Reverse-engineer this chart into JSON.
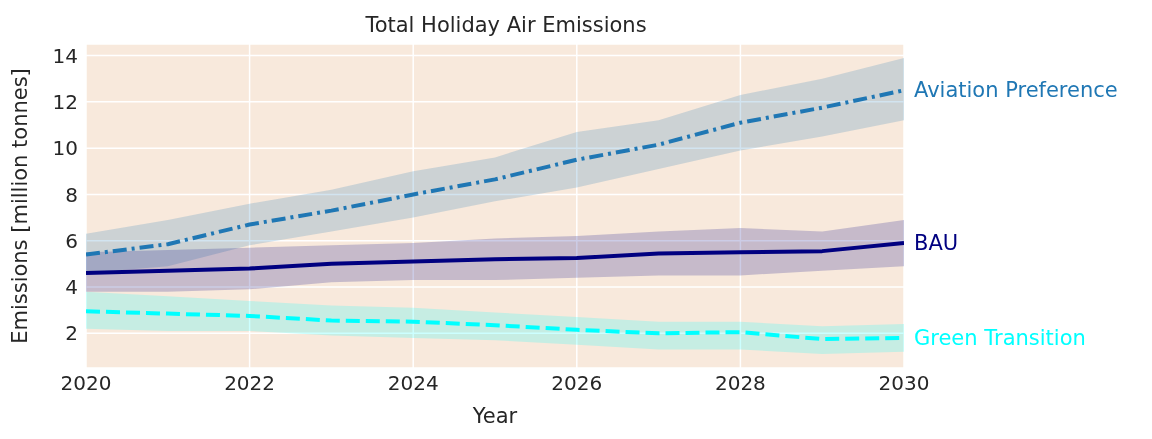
{
  "chart_data": {
    "type": "line",
    "title": "Total Holiday Air Emissions",
    "xlabel": "Year",
    "ylabel": "Emissions [million tonnes]",
    "x": [
      2020,
      2021,
      2022,
      2023,
      2024,
      2025,
      2026,
      2027,
      2028,
      2029,
      2030
    ],
    "series": [
      {
        "name": "Aviation Preference",
        "color": "#1f77b4",
        "line_style": "dashdot",
        "values": [
          5.4,
          5.85,
          6.7,
          7.3,
          8.0,
          8.65,
          9.5,
          10.15,
          11.1,
          11.75,
          12.5
        ],
        "lower": [
          4.6,
          4.9,
          5.8,
          6.4,
          7.0,
          7.7,
          8.3,
          9.1,
          9.9,
          10.5,
          11.2
        ],
        "upper": [
          6.3,
          6.9,
          7.6,
          8.2,
          9.0,
          9.6,
          10.7,
          11.2,
          12.3,
          13.0,
          13.9
        ]
      },
      {
        "name": "BAU",
        "color": "#000080",
        "line_style": "solid",
        "values": [
          4.6,
          4.7,
          4.8,
          5.0,
          5.1,
          5.2,
          5.25,
          5.45,
          5.5,
          5.55,
          5.9
        ],
        "lower": [
          3.8,
          3.8,
          3.9,
          4.2,
          4.3,
          4.3,
          4.4,
          4.5,
          4.5,
          4.7,
          4.9
        ],
        "upper": [
          5.5,
          5.6,
          5.7,
          5.8,
          5.9,
          6.1,
          6.2,
          6.4,
          6.55,
          6.4,
          6.9
        ]
      },
      {
        "name": "Green Transition",
        "color": "#00ffff",
        "line_style": "dashed",
        "values": [
          2.95,
          2.85,
          2.75,
          2.55,
          2.5,
          2.35,
          2.15,
          2.0,
          2.05,
          1.75,
          1.8
        ],
        "lower": [
          2.2,
          2.1,
          2.1,
          1.9,
          1.8,
          1.7,
          1.5,
          1.3,
          1.3,
          1.1,
          1.2
        ],
        "upper": [
          3.8,
          3.6,
          3.4,
          3.2,
          3.1,
          2.9,
          2.7,
          2.5,
          2.5,
          2.3,
          2.4
        ]
      }
    ],
    "xlim": [
      2020,
      2030
    ],
    "xticks": [
      2020,
      2022,
      2024,
      2026,
      2028,
      2030
    ],
    "ylim": [
      0.5,
      14.5
    ],
    "yticks": [
      2,
      4,
      6,
      8,
      10,
      12,
      14
    ],
    "grid": true,
    "marker": "none"
  }
}
